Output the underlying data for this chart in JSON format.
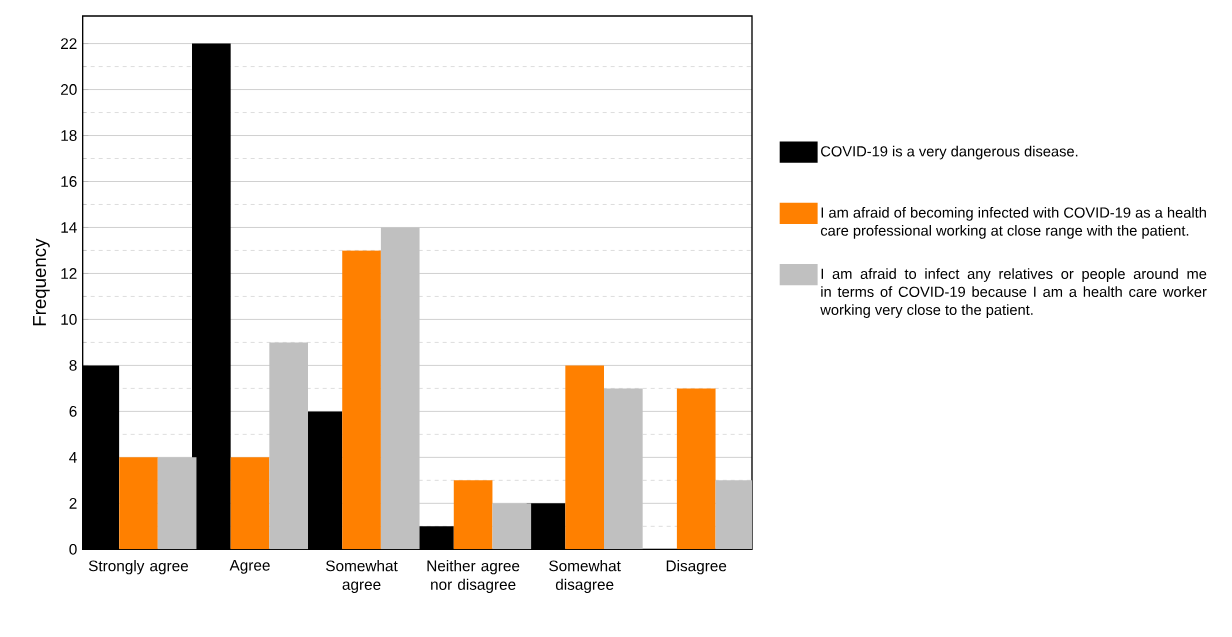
{
  "chart_data": {
    "type": "bar",
    "ylabel": "Frequency",
    "categories": [
      "Strongly agree",
      "Agree",
      "Somewhat agree",
      "Neither agree nor disagree",
      "Somewhat disagree",
      "Disagree"
    ],
    "series": [
      {
        "name": "COVID-19 is a very dangerous disease.",
        "color": "#000000",
        "values": [
          8,
          22,
          6,
          1,
          2,
          0
        ]
      },
      {
        "name": "I am afraid of becoming infected with COVID-19 as a health care professional working at close range with the patient.",
        "color": "#ff8000",
        "values": [
          4,
          4,
          13,
          3,
          8,
          7
        ]
      },
      {
        "name": "I am afraid to infect any relatives or people around me in terms of COVID-19 because I am a health care worker working very close to the patient.",
        "color": "#c0c0c0",
        "values": [
          4,
          9,
          14,
          2,
          7,
          3
        ]
      }
    ],
    "ylim": [
      0,
      23.2
    ],
    "yticks": [
      0,
      2,
      4,
      6,
      8,
      10,
      12,
      14,
      16,
      18,
      20,
      22
    ],
    "grid": "y",
    "legend": "right"
  }
}
